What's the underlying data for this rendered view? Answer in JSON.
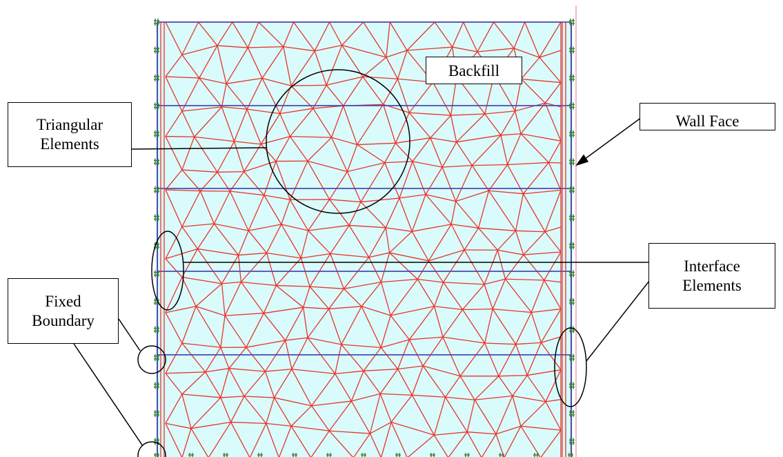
{
  "labels": {
    "backfill": "Backfill",
    "triangular_elements": "Triangular\nElements",
    "wall_face": "Wall Face",
    "interface_elements": "Interface\nElements",
    "fixed_boundary": "Fixed\nBoundary"
  },
  "colors": {
    "mesh_fill": "#d9fbfb",
    "mesh_lines": "#e8332b",
    "reinforcement_lines": "#4a4ab0",
    "boundary_markers": "#2e7d2e",
    "wall_face_line": "#f2a0a0",
    "annotations": "#000000"
  }
}
